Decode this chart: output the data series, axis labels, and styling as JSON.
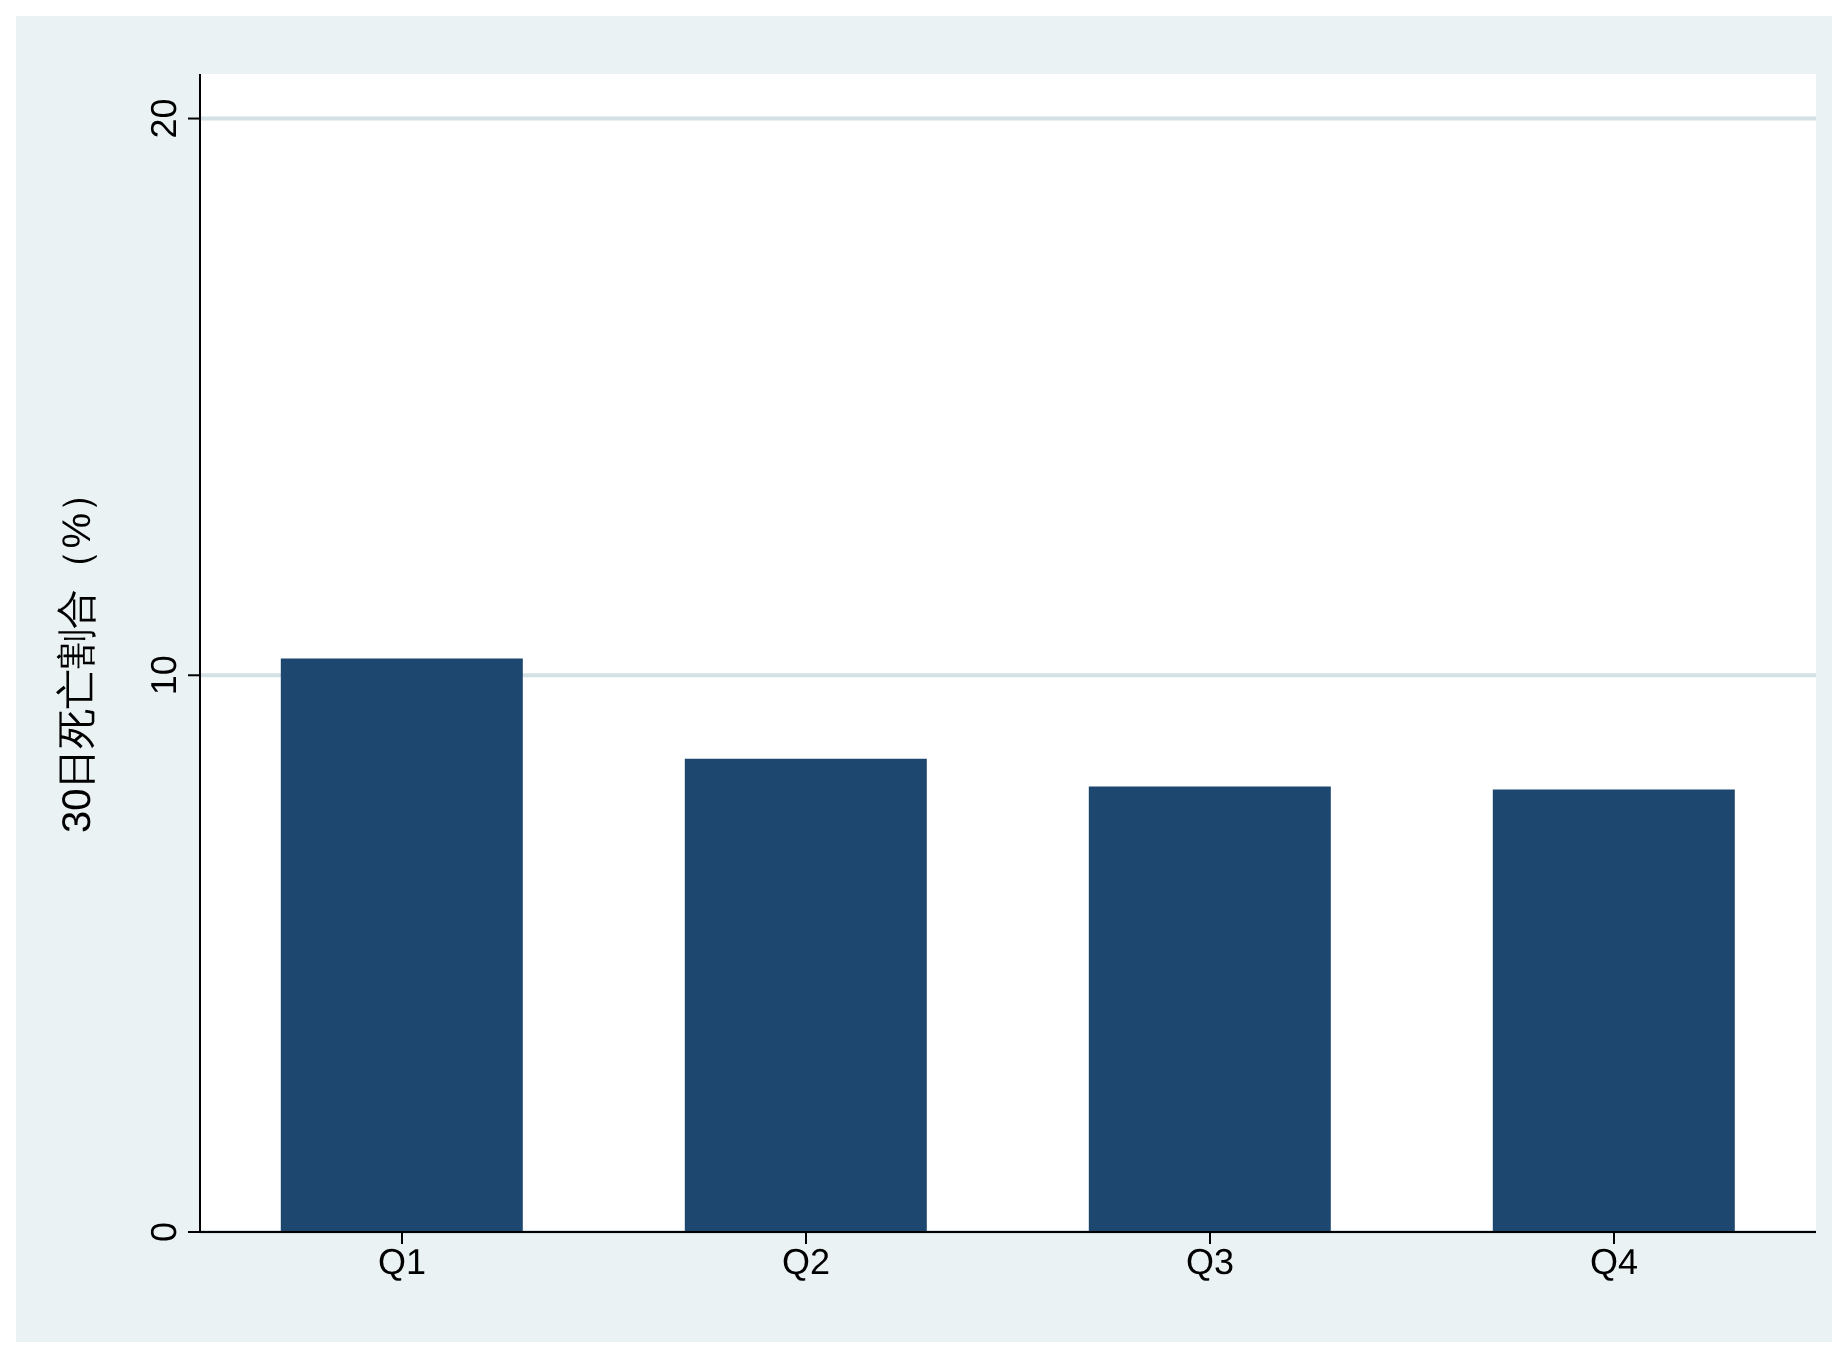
{
  "chart_data": {
    "type": "bar",
    "ylabel": "30日死亡割合（%）",
    "categories": [
      "Q1",
      "Q2",
      "Q3",
      "Q4"
    ],
    "values": [
      10.3,
      8.5,
      8.0,
      7.95
    ],
    "color": "#1d476f",
    "ylim": [
      0,
      20.8
    ],
    "yticks": [
      0,
      10,
      20
    ],
    "grid": "y"
  }
}
